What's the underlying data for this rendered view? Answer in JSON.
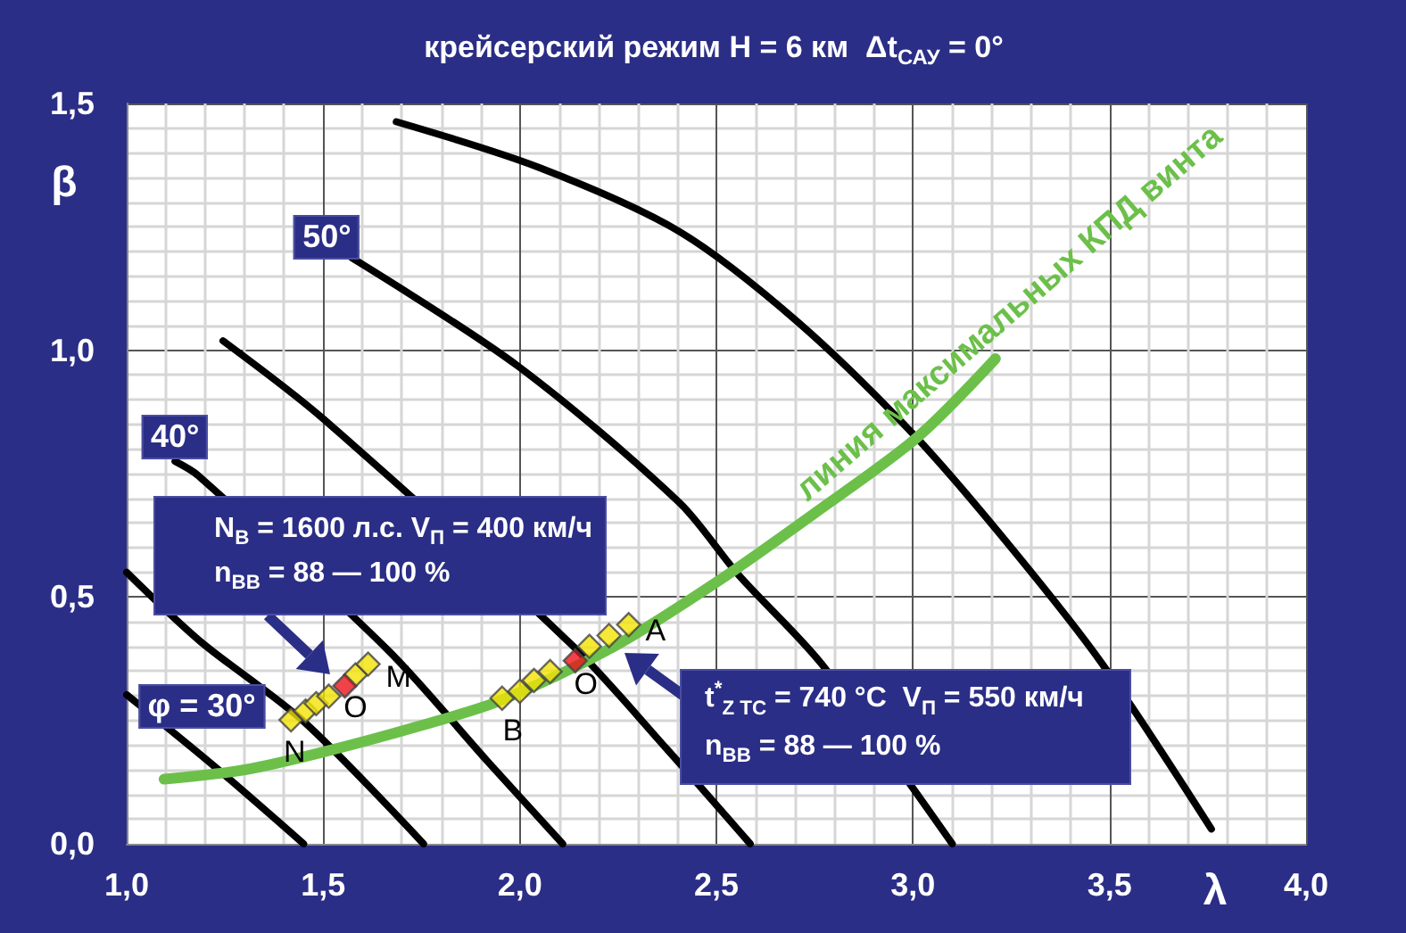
{
  "chart_data": {
    "type": "line",
    "title": "крейсерский режим H = 6 км  Δt$_{САУ}$ = 0°",
    "xlabel": "λ",
    "ylabel": "β",
    "xlim": [
      1.0,
      4.0
    ],
    "xticks": [
      {
        "value": 1.0,
        "label": "1,0"
      },
      {
        "value": 1.5,
        "label": "1,5"
      },
      {
        "value": 2.0,
        "label": "2,0"
      },
      {
        "value": 2.5,
        "label": "2,5"
      },
      {
        "value": 3.0,
        "label": "3,0"
      },
      {
        "value": 3.5,
        "label": "3,5"
      },
      {
        "value": 4.0,
        "label": "4,0"
      }
    ],
    "ylim": [
      0,
      1.5
    ],
    "yticks": [
      {
        "value": 0,
        "label": "0,0"
      },
      {
        "value": 0.5,
        "label": "0,5"
      },
      {
        "value": 1.0,
        "label": "1,0"
      },
      {
        "value": 1.5,
        "label": "1,5"
      }
    ],
    "grid": true,
    "legend": false,
    "marker": "none",
    "line_style": "solid",
    "series": [
      {
        "color": "#000000",
        "x": [
          1.0,
          1.223,
          1.45
        ],
        "values": [
          0.302,
          0.157,
          0
        ]
      },
      {
        "color": "#000000",
        "x": [
          1.0,
          1.186,
          1.45,
          1.755
        ],
        "values": [
          0.55,
          0.411,
          0.248,
          0
        ]
      },
      {
        "color": "#000000",
        "x": [
          1.123,
          1.182,
          1.664,
          1.918,
          2.109
        ],
        "values": [
          0.775,
          0.746,
          0.393,
          0.167,
          0
        ]
      },
      {
        "color": "#000000",
        "x": [
          1.245,
          1.5,
          2.136,
          2.373,
          2.586
        ],
        "values": [
          1.019,
          0.861,
          0.4,
          0.193,
          0
        ]
      },
      {
        "color": "#000000",
        "x": [
          1.573,
          1.995,
          2.405,
          2.555,
          2.768,
          3.1
        ],
        "values": [
          1.187,
          0.968,
          0.692,
          0.546,
          0.364,
          0
        ]
      },
      {
        "color": "#000000",
        "x": [
          1.686,
          2.05,
          2.405,
          2.709,
          3.009,
          3.25,
          3.482,
          3.759
        ],
        "values": [
          1.463,
          1.37,
          1.241,
          1.056,
          0.823,
          0.6,
          0.364,
          0.03
        ]
      },
      {
        "name": "линия максимальных КПД винта",
        "color": "#6cc04a",
        "x": [
          1.095,
          1.3,
          1.5,
          1.75,
          1.95,
          2.24,
          2.5,
          2.75,
          3.01,
          3.21
        ],
        "values": [
          0.131,
          0.15,
          0.186,
          0.24,
          0.29,
          0.4,
          0.53,
          0.67,
          0.823,
          0.983
        ]
      },
      {
        "type": "scatter",
        "marker": "diamond",
        "color": "#f2e205",
        "x": [
          1.418,
          1.455,
          1.482,
          1.514,
          1.582,
          1.614,
          1.955,
          2.0,
          2.036,
          2.077,
          2.177,
          2.227,
          2.277
        ],
        "values": [
          0.251,
          0.269,
          0.284,
          0.299,
          0.342,
          0.364,
          0.295,
          0.309,
          0.331,
          0.349,
          0.4,
          0.422,
          0.444
        ]
      },
      {
        "type": "scatter",
        "marker": "diamond",
        "color": "#e8141c",
        "x": [
          1.555,
          2.141
        ],
        "values": [
          0.32,
          0.371
        ]
      }
    ],
    "annotations": [
      {
        "text": "50°",
        "x": 1.573,
        "y": 1.187
      },
      {
        "text": "40°",
        "x": 1.123,
        "y": 0.775
      },
      {
        "text": "φ = 30°",
        "x": 1.0,
        "y": 0.302
      },
      {
        "text": "N",
        "x": 1.418,
        "y": 0.251
      },
      {
        "text": "O",
        "x": 1.555,
        "y": 0.32
      },
      {
        "text": "M",
        "x": 1.614,
        "y": 0.364
      },
      {
        "text": "B",
        "x": 1.955,
        "y": 0.295
      },
      {
        "text": "O",
        "x": 2.141,
        "y": 0.371
      },
      {
        "text": "A",
        "x": 2.277,
        "y": 0.444
      },
      "N$_{В}$ = 1600 л.с. V$_{П}$ = 400 км/ч",
      "n$_{ВВ}$ = 88 — 100 %",
      "t$^{*}$$_{Z ТС}$ = 740 °C  V$_{П}$ = 550 км/ч",
      "n$_{ВВ}$ = 88 — 100 %"
    ]
  }
}
